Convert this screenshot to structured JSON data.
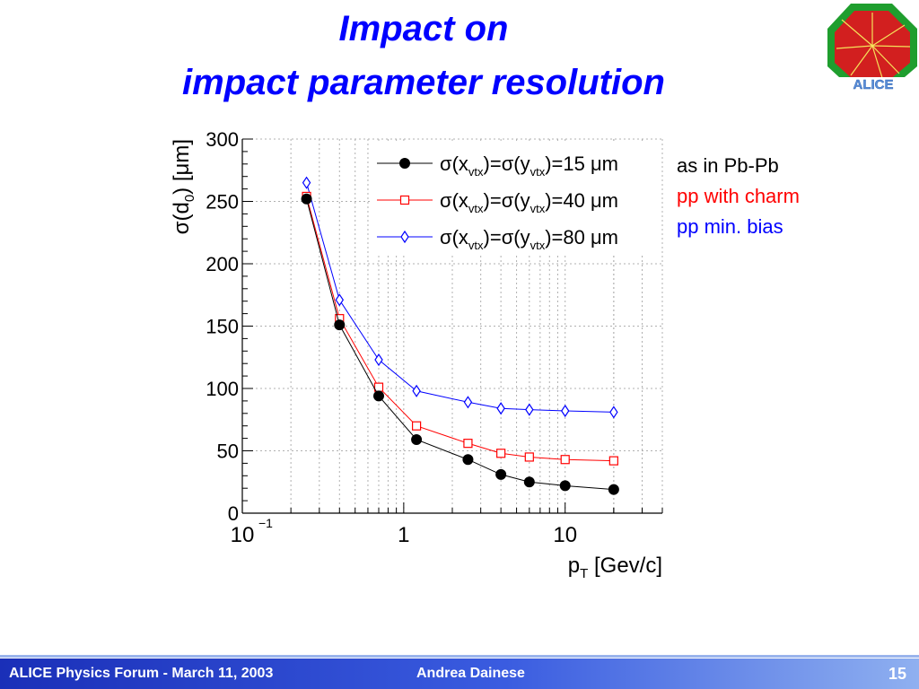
{
  "slide": {
    "title_line1": "Impact on",
    "title_line2": "impact parameter resolution",
    "notes": [
      "as in Pb-Pb",
      "pp with charm",
      "pp min. bias"
    ],
    "note_colors": [
      "#000000",
      "#ff0000",
      "#0000ff"
    ],
    "footer_left": "ALICE Physics Forum - March 11, 2003",
    "footer_center": "Andrea Dainese",
    "page_number": "15",
    "logo_text": "ALICE"
  },
  "chart_data": {
    "type": "line",
    "xscale": "log",
    "xlim": [
      0.1,
      40
    ],
    "ylim": [
      0,
      300
    ],
    "grid": true,
    "xlabel_main": "p",
    "xlabel_sub": "T",
    "xlabel_rest": "[Gev/c]",
    "ylabel_main": "σ(d",
    "ylabel_sub": "0",
    "ylabel_rest": ") [μm]",
    "y_ticks": [
      0,
      50,
      100,
      150,
      200,
      250,
      300
    ],
    "x_tick_labels": [
      {
        "value": 0.1,
        "base": "10",
        "exp": "−1"
      },
      {
        "value": 1,
        "base": "1",
        "exp": ""
      },
      {
        "value": 10,
        "base": "10",
        "exp": ""
      }
    ],
    "x": [
      0.25,
      0.4,
      0.7,
      1.2,
      2.5,
      4,
      6,
      10,
      20
    ],
    "legend_position": "top-right",
    "series": [
      {
        "legend_sigma": "σ(x",
        "legend_sub": "vtx",
        "legend_mid": ")=σ(y",
        "legend_end": ")=15 μm",
        "color": "#000000",
        "marker": "filled-circle",
        "values": [
          252,
          151,
          94,
          59,
          43,
          31,
          25,
          22,
          19
        ]
      },
      {
        "legend_sigma": "σ(x",
        "legend_sub": "vtx",
        "legend_mid": ")=σ(y",
        "legend_end": ")=40 μm",
        "color": "#ff0000",
        "marker": "open-square",
        "values": [
          254,
          156,
          101,
          70,
          56,
          48,
          45,
          43,
          42
        ]
      },
      {
        "legend_sigma": "σ(x",
        "legend_sub": "vtx",
        "legend_mid": ")=σ(y",
        "legend_end": ")=80 μm",
        "color": "#0000ff",
        "marker": "open-diamond",
        "values": [
          265,
          171,
          123,
          98,
          89,
          84,
          83,
          82,
          81
        ]
      }
    ]
  }
}
